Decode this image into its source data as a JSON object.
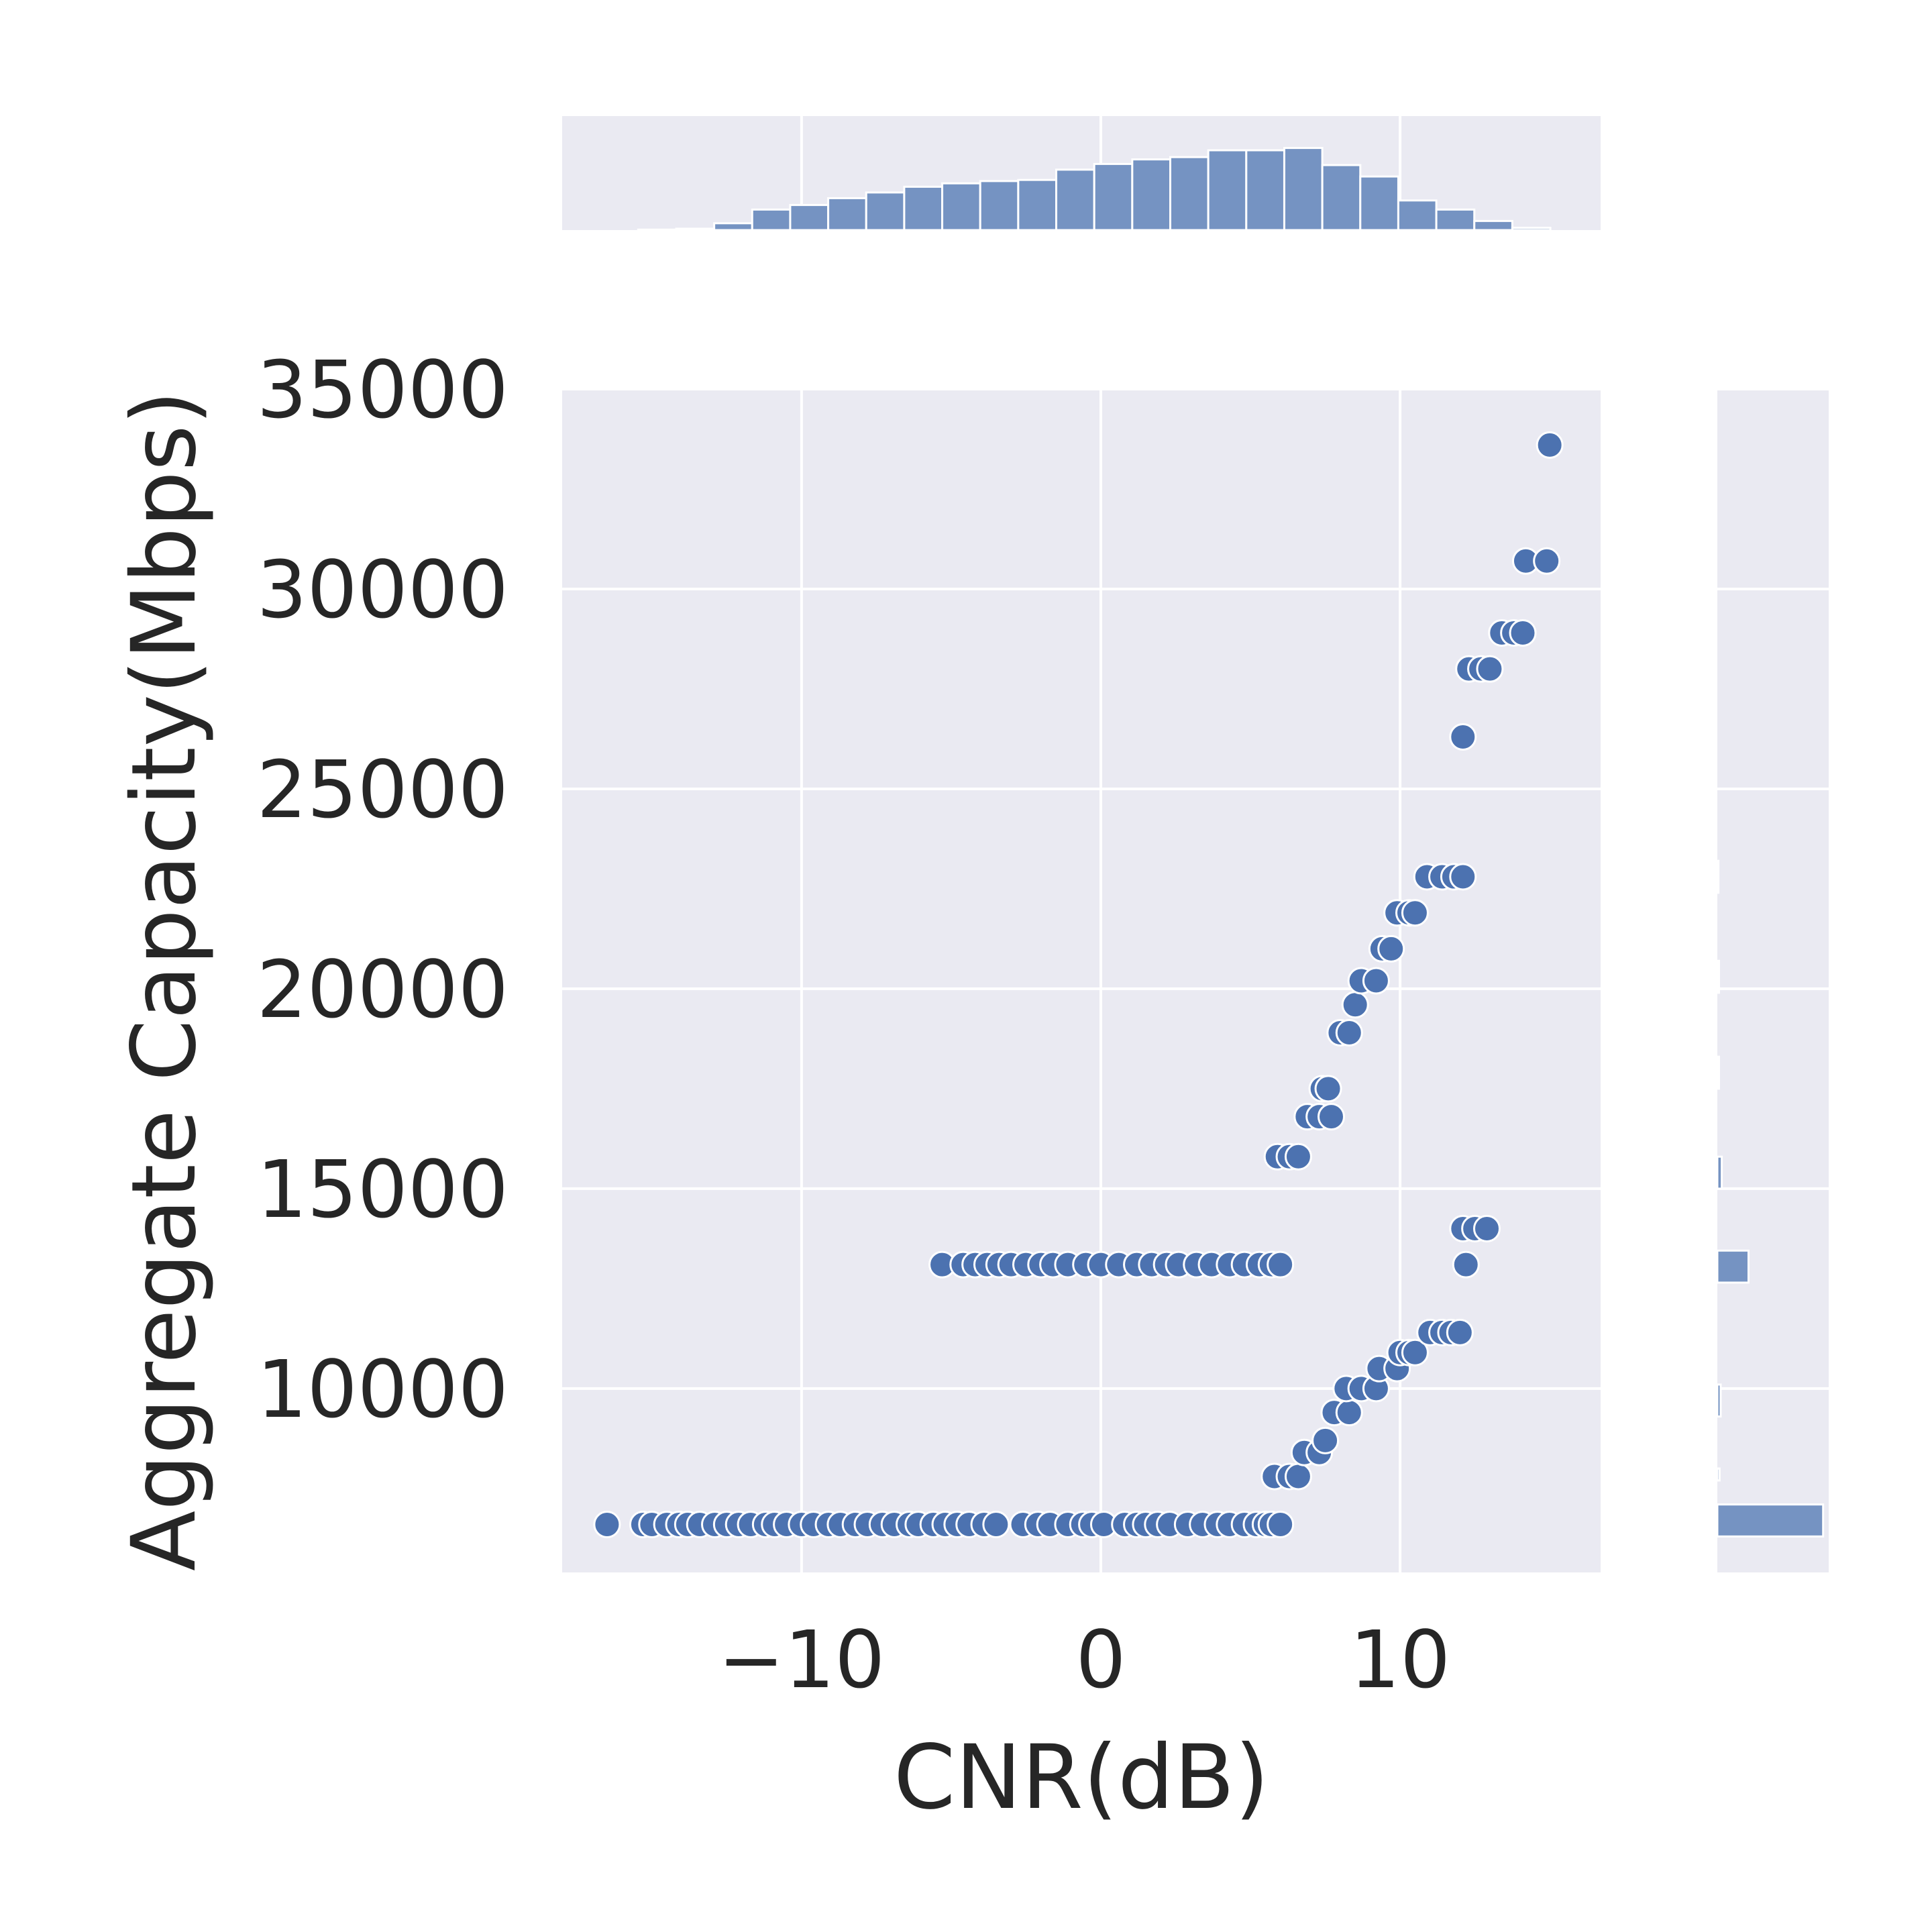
{
  "chart_data": {
    "type": "scatter",
    "title": "",
    "xlabel": "CNR(dB)",
    "ylabel": "Aggregate Capacity(Mbps)",
    "xlim": [
      -18,
      16.7
    ],
    "ylim": [
      5400,
      35000
    ],
    "x_ticks": [
      -10,
      0,
      10
    ],
    "x_tick_labels": [
      "−10",
      "0",
      "10"
    ],
    "y_ticks": [
      10000,
      15000,
      20000,
      25000,
      30000,
      35000
    ],
    "y_tick_labels": [
      "10000",
      "15000",
      "20000",
      "25000",
      "30000",
      "35000"
    ],
    "grid": true,
    "colors": {
      "points": "#4c72b0",
      "bars": "#7593c2",
      "background": "#eaeaf2",
      "grid": "#ffffff",
      "text": "#262626"
    },
    "series": [
      {
        "points": [
          [
            -16.5,
            6600
          ],
          [
            -15.3,
            6600
          ],
          [
            -15.0,
            6600
          ],
          [
            -14.5,
            6600
          ],
          [
            -14.1,
            6600
          ],
          [
            -13.8,
            6600
          ],
          [
            -13.4,
            6600
          ],
          [
            -12.9,
            6600
          ],
          [
            -12.5,
            6600
          ],
          [
            -12.1,
            6600
          ],
          [
            -11.7,
            6600
          ],
          [
            -11.2,
            6600
          ],
          [
            -10.9,
            6600
          ],
          [
            -10.5,
            6600
          ],
          [
            -10.0,
            6600
          ],
          [
            -9.6,
            6600
          ],
          [
            -9.1,
            6600
          ],
          [
            -8.7,
            6600
          ],
          [
            -8.2,
            6600
          ],
          [
            -7.8,
            6600
          ],
          [
            -7.3,
            6600
          ],
          [
            -6.9,
            6600
          ],
          [
            -6.4,
            6600
          ],
          [
            -6.1,
            6600
          ],
          [
            -5.6,
            6600
          ],
          [
            -5.2,
            6600
          ],
          [
            -4.8,
            6600
          ],
          [
            -4.4,
            6600
          ],
          [
            -3.9,
            6600
          ],
          [
            -3.5,
            6600
          ],
          [
            -2.6,
            6600
          ],
          [
            -2.1,
            6600
          ],
          [
            -1.7,
            6600
          ],
          [
            -1.1,
            6600
          ],
          [
            -0.6,
            6600
          ],
          [
            -0.3,
            6600
          ],
          [
            0.1,
            6600
          ],
          [
            0.8,
            6600
          ],
          [
            1.2,
            6600
          ],
          [
            1.5,
            6600
          ],
          [
            1.9,
            6600
          ],
          [
            2.3,
            6600
          ],
          [
            2.9,
            6600
          ],
          [
            3.4,
            6600
          ],
          [
            3.9,
            6600
          ],
          [
            4.3,
            6600
          ],
          [
            4.8,
            6600
          ],
          [
            5.2,
            6600
          ],
          [
            5.5,
            6600
          ],
          [
            5.7,
            6600
          ],
          [
            6.0,
            6600
          ],
          [
            -5.3,
            13100
          ],
          [
            -4.6,
            13100
          ],
          [
            -4.2,
            13100
          ],
          [
            -3.8,
            13100
          ],
          [
            -3.4,
            13100
          ],
          [
            -3.0,
            13100
          ],
          [
            -2.5,
            13100
          ],
          [
            -2.0,
            13100
          ],
          [
            -1.6,
            13100
          ],
          [
            -1.1,
            13100
          ],
          [
            -0.5,
            13100
          ],
          [
            0.0,
            13100
          ],
          [
            0.6,
            13100
          ],
          [
            1.2,
            13100
          ],
          [
            1.7,
            13100
          ],
          [
            2.2,
            13100
          ],
          [
            2.6,
            13100
          ],
          [
            3.2,
            13100
          ],
          [
            3.7,
            13100
          ],
          [
            4.3,
            13100
          ],
          [
            4.8,
            13100
          ],
          [
            5.3,
            13100
          ],
          [
            5.7,
            13100
          ],
          [
            6.0,
            13100
          ],
          [
            5.8,
            7800
          ],
          [
            6.3,
            7800
          ],
          [
            6.6,
            7800
          ],
          [
            6.8,
            8400
          ],
          [
            7.3,
            8400
          ],
          [
            7.5,
            8700
          ],
          [
            7.8,
            9400
          ],
          [
            8.3,
            9400
          ],
          [
            8.2,
            10000
          ],
          [
            8.7,
            10000
          ],
          [
            9.2,
            10000
          ],
          [
            9.3,
            10500
          ],
          [
            9.9,
            10500
          ],
          [
            10.0,
            10900
          ],
          [
            10.3,
            10900
          ],
          [
            10.5,
            10900
          ],
          [
            11.0,
            11400
          ],
          [
            11.4,
            11400
          ],
          [
            11.7,
            11400
          ],
          [
            12.0,
            11400
          ],
          [
            12.2,
            13100
          ],
          [
            12.1,
            14000
          ],
          [
            12.5,
            14000
          ],
          [
            12.9,
            14000
          ],
          [
            5.9,
            15800
          ],
          [
            6.3,
            15800
          ],
          [
            6.6,
            15800
          ],
          [
            6.9,
            16800
          ],
          [
            7.3,
            16800
          ],
          [
            7.7,
            16800
          ],
          [
            7.4,
            17500
          ],
          [
            7.6,
            17500
          ],
          [
            8.0,
            18900
          ],
          [
            8.3,
            18900
          ],
          [
            8.5,
            19600
          ],
          [
            8.7,
            20200
          ],
          [
            9.2,
            20200
          ],
          [
            9.4,
            21000
          ],
          [
            9.7,
            21000
          ],
          [
            9.9,
            21900
          ],
          [
            10.3,
            21900
          ],
          [
            10.5,
            21900
          ],
          [
            10.9,
            22800
          ],
          [
            11.4,
            22800
          ],
          [
            11.8,
            22800
          ],
          [
            12.1,
            22800
          ],
          [
            12.1,
            26300
          ],
          [
            12.3,
            28000
          ],
          [
            12.7,
            28000
          ],
          [
            13.0,
            28000
          ],
          [
            13.4,
            28900
          ],
          [
            13.8,
            28900
          ],
          [
            14.1,
            28900
          ],
          [
            14.2,
            30700
          ],
          [
            14.9,
            30700
          ],
          [
            15.0,
            33600
          ]
        ]
      }
    ],
    "x_marginal_histogram": {
      "bin_edges": [
        -18.0,
        -16.73,
        -15.46,
        -14.19,
        -12.92,
        -11.65,
        -10.38,
        -9.11,
        -7.84,
        -6.57,
        -5.3,
        -4.03,
        -2.76,
        -1.49,
        -0.22,
        1.05,
        2.32,
        3.59,
        4.86,
        6.13,
        7.4,
        8.67,
        9.94,
        11.21,
        12.48,
        13.75,
        15.02
      ],
      "heights": [
        0.0,
        0.0,
        0.004,
        0.012,
        0.06,
        0.18,
        0.22,
        0.28,
        0.33,
        0.38,
        0.41,
        0.43,
        0.44,
        0.53,
        0.58,
        0.62,
        0.64,
        0.7,
        0.7,
        0.72,
        0.57,
        0.47,
        0.26,
        0.18,
        0.08,
        0.02
      ]
    },
    "y_marginal_histogram": {
      "bars": [
        {
          "y_from": 6300,
          "y_to": 7100,
          "value": 0.95
        },
        {
          "y_from": 7700,
          "y_to": 8000,
          "value": 0.02
        },
        {
          "y_from": 9300,
          "y_to": 10100,
          "value": 0.03
        },
        {
          "y_from": 12650,
          "y_to": 13450,
          "value": 0.28
        },
        {
          "y_from": 15000,
          "y_to": 15800,
          "value": 0.04
        },
        {
          "y_from": 17500,
          "y_to": 18300,
          "value": 0.015
        },
        {
          "y_from": 19900,
          "y_to": 20700,
          "value": 0.015
        },
        {
          "y_from": 22400,
          "y_to": 23200,
          "value": 0.01
        }
      ]
    }
  }
}
